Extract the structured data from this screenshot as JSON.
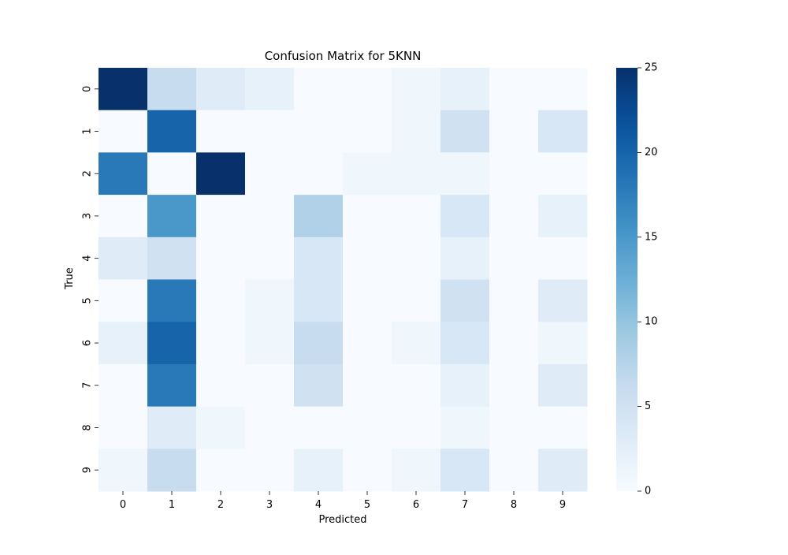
{
  "chart_data": {
    "type": "heatmap",
    "title": "Confusion Matrix for 5KNN",
    "xlabel": "Predicted",
    "ylabel": "True",
    "x_categories": [
      "0",
      "1",
      "2",
      "3",
      "4",
      "5",
      "6",
      "7",
      "8",
      "9"
    ],
    "y_categories": [
      "0",
      "1",
      "2",
      "3",
      "4",
      "5",
      "6",
      "7",
      "8",
      "9"
    ],
    "values": [
      [
        25,
        6,
        3,
        2,
        0,
        0,
        1,
        2,
        0,
        0
      ],
      [
        0,
        20,
        0,
        0,
        0,
        0,
        1,
        5,
        0,
        4
      ],
      [
        18,
        0,
        25,
        0,
        0,
        1,
        1,
        1,
        0,
        0
      ],
      [
        0,
        15,
        0,
        0,
        8,
        0,
        0,
        4,
        0,
        2
      ],
      [
        3,
        5,
        0,
        0,
        4,
        0,
        0,
        2,
        0,
        0
      ],
      [
        0,
        18,
        0,
        1,
        4,
        0,
        0,
        5,
        0,
        3
      ],
      [
        2,
        20,
        0,
        1,
        6,
        0,
        1,
        4,
        0,
        1
      ],
      [
        0,
        18,
        0,
        0,
        5,
        0,
        0,
        2,
        0,
        3
      ],
      [
        0,
        3,
        1,
        0,
        0,
        0,
        0,
        1,
        0,
        0
      ],
      [
        1,
        6,
        0,
        0,
        2,
        0,
        1,
        4,
        0,
        3
      ]
    ],
    "colorbar": {
      "min": 0,
      "max": 25,
      "ticks": [
        0,
        5,
        10,
        15,
        20,
        25
      ],
      "colormap": "Blues",
      "color_low": "#f7fbff",
      "color_high": "#08306b"
    }
  }
}
